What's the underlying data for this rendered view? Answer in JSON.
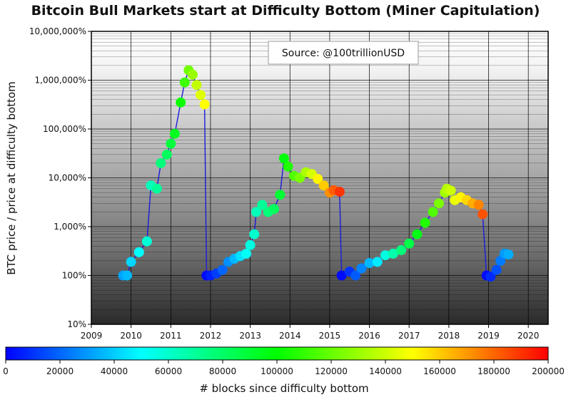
{
  "chart_data": {
    "type": "scatter",
    "title": "Bitcoin Bull Markets start at Difficulty Bottom (Miner Capitulation)",
    "annotation": "Source: @100trillionUSD",
    "xlabel": "",
    "ylabel": "BTC price / price at difficulty bottom",
    "y_scale": "log",
    "x_ticks": [
      "2009",
      "2010",
      "2011",
      "2012",
      "2013",
      "2014",
      "2015",
      "2016",
      "2017",
      "2018",
      "2019",
      "2020"
    ],
    "y_ticks": [
      "10%",
      "100%",
      "1,000%",
      "10,000%",
      "100,000%",
      "1,000,000%",
      "10,000,000%"
    ],
    "xlim": [
      2009,
      2020.5
    ],
    "ylim": [
      10,
      10000000
    ],
    "grid": true,
    "colorbar": {
      "label": "# blocks since difficulty bottom",
      "ticks": [
        "0",
        "20000",
        "40000",
        "60000",
        "80000",
        "100000",
        "120000",
        "140000",
        "160000",
        "180000",
        "200000"
      ],
      "range": [
        0,
        200000
      ],
      "colormap": [
        "#0000ff",
        "#00ffff",
        "#00ff00",
        "#ffff00",
        "#ff0000"
      ]
    },
    "series": [
      {
        "points": [
          {
            "x": 2009.8,
            "y": 100,
            "b": 32000
          },
          {
            "x": 2009.9,
            "y": 100,
            "b": 36000
          },
          {
            "x": 2010.0,
            "y": 190,
            "b": 42000
          },
          {
            "x": 2010.2,
            "y": 300,
            "b": 50000
          },
          {
            "x": 2010.4,
            "y": 500,
            "b": 58000
          },
          {
            "x": 2010.5,
            "y": 7000,
            "b": 64000
          },
          {
            "x": 2010.65,
            "y": 6000,
            "b": 70000
          },
          {
            "x": 2010.75,
            "y": 20000,
            "b": 76000
          },
          {
            "x": 2010.9,
            "y": 30000,
            "b": 82000
          },
          {
            "x": 2011.0,
            "y": 50000,
            "b": 88000
          },
          {
            "x": 2011.1,
            "y": 80000,
            "b": 94000
          },
          {
            "x": 2011.25,
            "y": 350000,
            "b": 102000
          },
          {
            "x": 2011.35,
            "y": 900000,
            "b": 112000
          },
          {
            "x": 2011.45,
            "y": 1600000,
            "b": 122000
          },
          {
            "x": 2011.55,
            "y": 1300000,
            "b": 130000
          },
          {
            "x": 2011.65,
            "y": 800000,
            "b": 138000
          },
          {
            "x": 2011.75,
            "y": 500000,
            "b": 144000
          },
          {
            "x": 2011.85,
            "y": 320000,
            "b": 150000
          }
        ]
      },
      {
        "points": [
          {
            "x": 2011.9,
            "y": 100,
            "b": 2000
          },
          {
            "x": 2012.0,
            "y": 100,
            "b": 6000
          },
          {
            "x": 2012.15,
            "y": 110,
            "b": 12000
          },
          {
            "x": 2012.3,
            "y": 130,
            "b": 20000
          },
          {
            "x": 2012.45,
            "y": 190,
            "b": 28000
          },
          {
            "x": 2012.6,
            "y": 220,
            "b": 36000
          },
          {
            "x": 2012.75,
            "y": 250,
            "b": 44000
          },
          {
            "x": 2012.9,
            "y": 280,
            "b": 52000
          },
          {
            "x": 2013.0,
            "y": 420,
            "b": 56000
          },
          {
            "x": 2013.1,
            "y": 700,
            "b": 60000
          },
          {
            "x": 2013.15,
            "y": 2000,
            "b": 64000
          },
          {
            "x": 2013.3,
            "y": 2800,
            "b": 70000
          },
          {
            "x": 2013.45,
            "y": 2000,
            "b": 76000
          },
          {
            "x": 2013.6,
            "y": 2300,
            "b": 82000
          },
          {
            "x": 2013.75,
            "y": 4500,
            "b": 90000
          },
          {
            "x": 2013.85,
            "y": 25000,
            "b": 98000
          },
          {
            "x": 2013.95,
            "y": 17000,
            "b": 106000
          },
          {
            "x": 2014.1,
            "y": 11000,
            "b": 116000
          },
          {
            "x": 2014.25,
            "y": 10000,
            "b": 124000
          },
          {
            "x": 2014.4,
            "y": 13000,
            "b": 134000
          },
          {
            "x": 2014.55,
            "y": 12000,
            "b": 142000
          },
          {
            "x": 2014.7,
            "y": 9500,
            "b": 152000
          },
          {
            "x": 2014.85,
            "y": 7000,
            "b": 160000
          },
          {
            "x": 2015.0,
            "y": 5000,
            "b": 172000
          },
          {
            "x": 2015.1,
            "y": 5600,
            "b": 182000
          },
          {
            "x": 2015.25,
            "y": 5200,
            "b": 190000
          }
        ]
      },
      {
        "points": [
          {
            "x": 2015.3,
            "y": 100,
            "b": 2000
          },
          {
            "x": 2015.5,
            "y": 120,
            "b": 10000
          },
          {
            "x": 2015.65,
            "y": 100,
            "b": 18000
          },
          {
            "x": 2015.8,
            "y": 140,
            "b": 26000
          },
          {
            "x": 2016.0,
            "y": 180,
            "b": 36000
          },
          {
            "x": 2016.2,
            "y": 190,
            "b": 46000
          },
          {
            "x": 2016.4,
            "y": 260,
            "b": 56000
          },
          {
            "x": 2016.6,
            "y": 280,
            "b": 66000
          },
          {
            "x": 2016.8,
            "y": 330,
            "b": 76000
          },
          {
            "x": 2017.0,
            "y": 450,
            "b": 86000
          },
          {
            "x": 2017.2,
            "y": 700,
            "b": 96000
          },
          {
            "x": 2017.4,
            "y": 1200,
            "b": 106000
          },
          {
            "x": 2017.6,
            "y": 2000,
            "b": 116000
          },
          {
            "x": 2017.75,
            "y": 3000,
            "b": 124000
          },
          {
            "x": 2017.9,
            "y": 5000,
            "b": 132000
          },
          {
            "x": 2017.95,
            "y": 6000,
            "b": 136000
          },
          {
            "x": 2018.05,
            "y": 5500,
            "b": 140000
          },
          {
            "x": 2018.15,
            "y": 3500,
            "b": 146000
          },
          {
            "x": 2018.3,
            "y": 4000,
            "b": 152000
          },
          {
            "x": 2018.45,
            "y": 3500,
            "b": 158000
          },
          {
            "x": 2018.6,
            "y": 3000,
            "b": 166000
          },
          {
            "x": 2018.75,
            "y": 2800,
            "b": 174000
          },
          {
            "x": 2018.85,
            "y": 1800,
            "b": 184000
          }
        ]
      },
      {
        "points": [
          {
            "x": 2018.95,
            "y": 100,
            "b": 2000
          },
          {
            "x": 2019.05,
            "y": 95,
            "b": 8000
          },
          {
            "x": 2019.2,
            "y": 130,
            "b": 16000
          },
          {
            "x": 2019.3,
            "y": 200,
            "b": 24000
          },
          {
            "x": 2019.4,
            "y": 280,
            "b": 30000
          },
          {
            "x": 2019.5,
            "y": 270,
            "b": 34000
          }
        ]
      }
    ]
  }
}
